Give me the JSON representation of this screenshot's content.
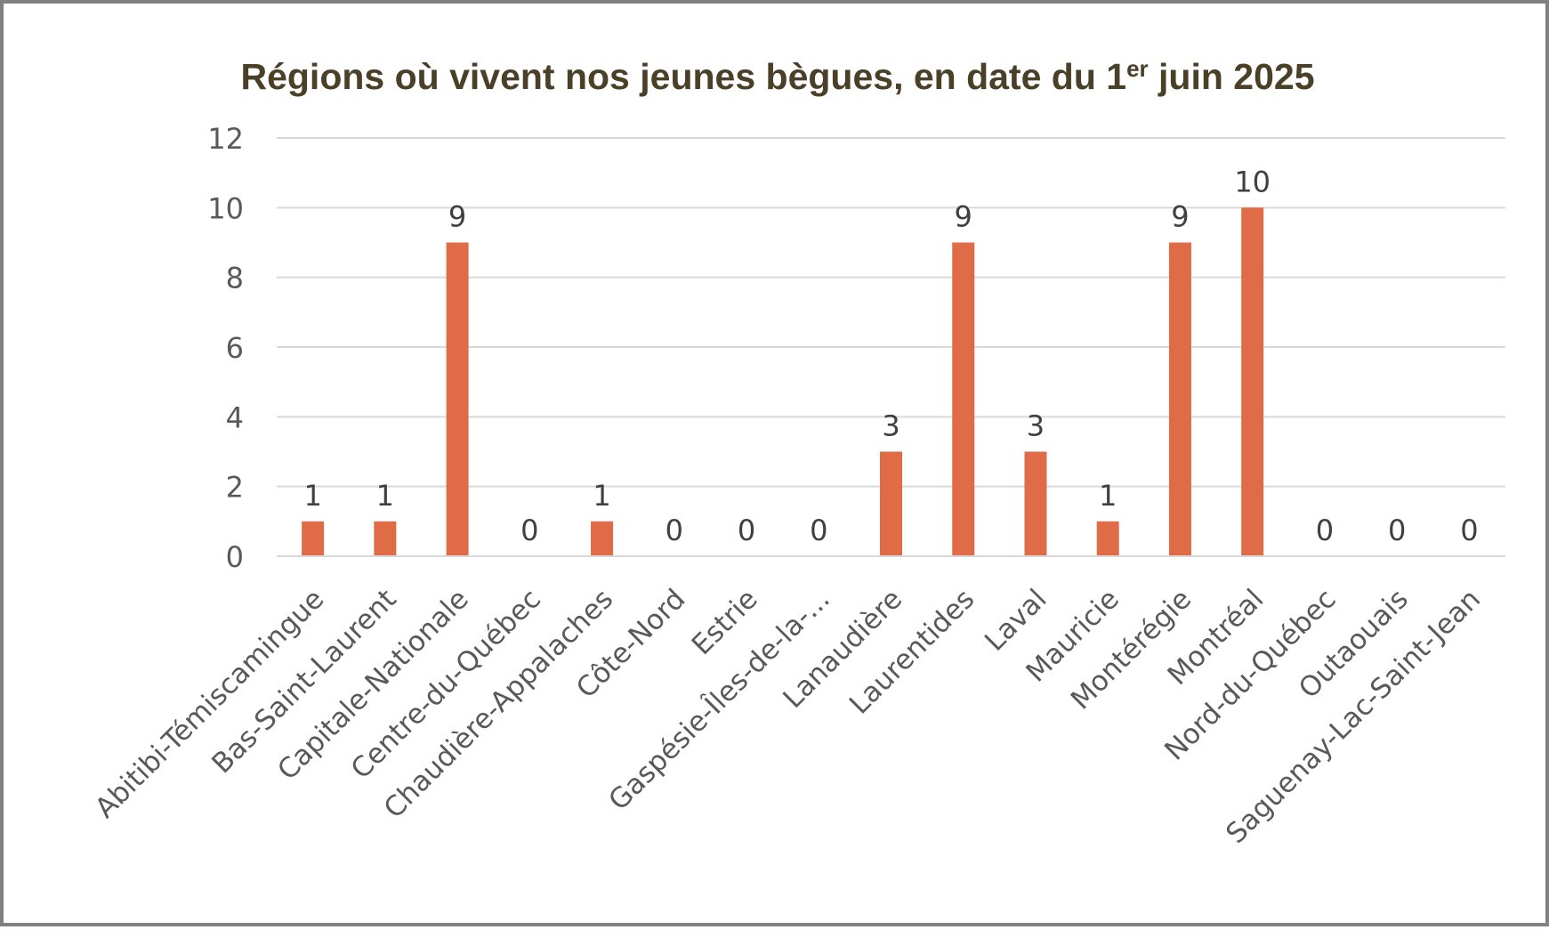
{
  "chart_data": {
    "type": "bar",
    "title": "Régions où vivent nos jeunes bègues, en date du 1",
    "title_superscript": "er",
    "title_suffix": " juin 2025",
    "xlabel": "",
    "ylabel": "",
    "ylim": [
      0,
      12
    ],
    "yticks": [
      "0",
      "2",
      "4",
      "6",
      "8",
      "10",
      "12"
    ],
    "grid": true,
    "legend": "none",
    "categories": [
      "Abitibi-Témiscamingue",
      "Bas-Saint-Laurent",
      "Capitale-Nationale",
      "Centre-du-Québec",
      "Chaudière-Appalaches",
      "Côte-Nord",
      "Estrie",
      "Gaspésie-Îles-de-la-...",
      "Lanaudière",
      "Laurentides",
      "Laval",
      "Mauricie",
      "Montérégie",
      "Montréal",
      "Nord-du-Québec",
      "Outaouais",
      "Saguenay-Lac-Saint-Jean"
    ],
    "values": [
      1,
      1,
      9,
      0,
      1,
      0,
      0,
      0,
      3,
      9,
      3,
      1,
      9,
      10,
      0,
      0,
      0
    ],
    "value_labels": [
      "1",
      "1",
      "9",
      "0",
      "1",
      "0",
      "0",
      "0",
      "3",
      "9",
      "3",
      "1",
      "9",
      "10",
      "0",
      "0",
      "0"
    ],
    "colors": {
      "bar": "#E06C47",
      "title": "#4A4027",
      "grid": "#D9D9D9",
      "text": "#595959",
      "value_label": "#404040",
      "border": "#808080"
    }
  }
}
